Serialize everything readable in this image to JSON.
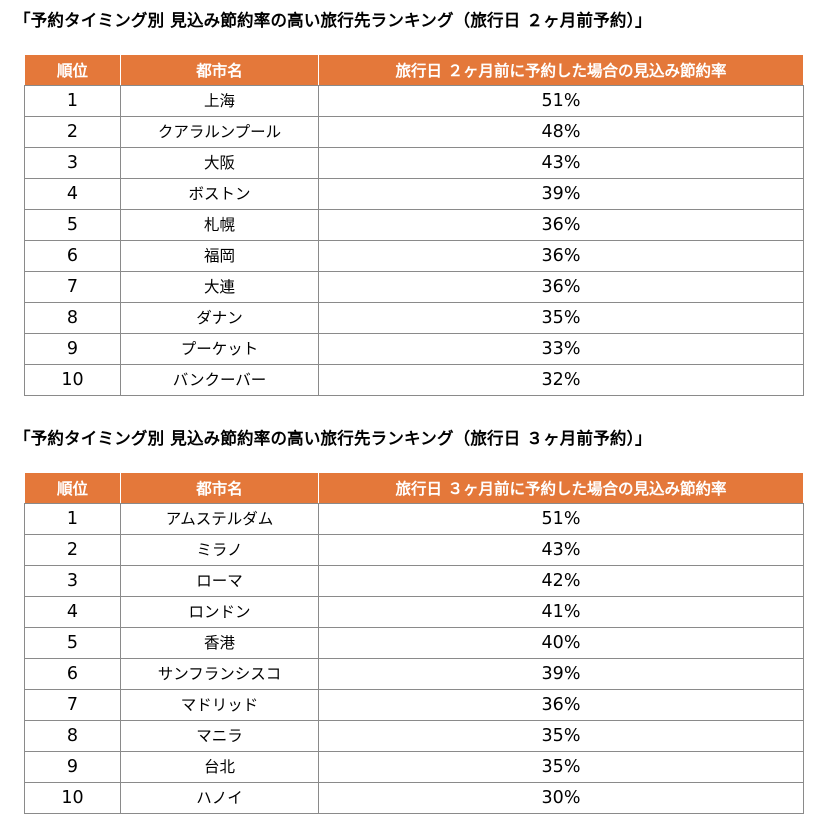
{
  "tables": [
    {
      "title": "「予約タイミング別 見込み節約率の高い旅行先ランキング（旅行日 ２ヶ月前予約）」",
      "headers": {
        "rank": "順位",
        "city": "都市名",
        "rate": "旅行日 ２ヶ月前に予約した場合の見込み節約率"
      },
      "rows": [
        {
          "rank": "1",
          "city": "上海",
          "rate": "51%"
        },
        {
          "rank": "2",
          "city": "クアラルンプール",
          "rate": "48%"
        },
        {
          "rank": "3",
          "city": "大阪",
          "rate": "43%"
        },
        {
          "rank": "4",
          "city": "ボストン",
          "rate": "39%"
        },
        {
          "rank": "5",
          "city": "札幌",
          "rate": "36%"
        },
        {
          "rank": "6",
          "city": "福岡",
          "rate": "36%"
        },
        {
          "rank": "7",
          "city": "大連",
          "rate": "36%"
        },
        {
          "rank": "8",
          "city": "ダナン",
          "rate": "35%"
        },
        {
          "rank": "9",
          "city": "プーケット",
          "rate": "33%"
        },
        {
          "rank": "10",
          "city": "バンクーバー",
          "rate": "32%"
        }
      ]
    },
    {
      "title": "「予約タイミング別 見込み節約率の高い旅行先ランキング（旅行日 ３ヶ月前予約）」",
      "headers": {
        "rank": "順位",
        "city": "都市名",
        "rate": "旅行日 ３ヶ月前に予約した場合の見込み節約率"
      },
      "rows": [
        {
          "rank": "1",
          "city": "アムステルダム",
          "rate": "51%"
        },
        {
          "rank": "2",
          "city": "ミラノ",
          "rate": "43%"
        },
        {
          "rank": "3",
          "city": "ローマ",
          "rate": "42%"
        },
        {
          "rank": "4",
          "city": "ロンドン",
          "rate": "41%"
        },
        {
          "rank": "5",
          "city": "香港",
          "rate": "40%"
        },
        {
          "rank": "6",
          "city": "サンフランシスコ",
          "rate": "39%"
        },
        {
          "rank": "7",
          "city": "マドリッド",
          "rate": "36%"
        },
        {
          "rank": "8",
          "city": "マニラ",
          "rate": "35%"
        },
        {
          "rank": "9",
          "city": "台北",
          "rate": "35%"
        },
        {
          "rank": "10",
          "city": "ハノイ",
          "rate": "30%"
        }
      ]
    }
  ],
  "colors": {
    "header_bg": "#e4783a",
    "header_text": "#ffffff",
    "border": "#8a8a8a"
  }
}
